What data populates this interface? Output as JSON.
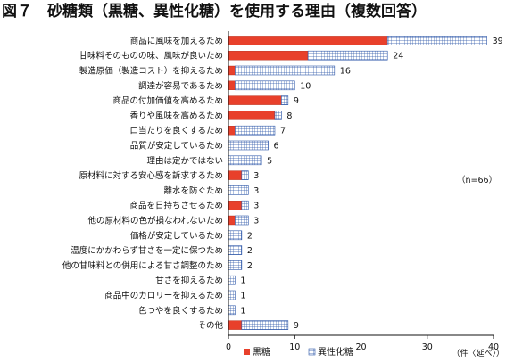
{
  "title": "図７　砂糖類（黒糖、異性化糖）を使用する理由（複数回答）",
  "note": "（n=66）",
  "unit": "（件〈延べ〉）",
  "colors": {
    "kokuto": "#e8402b",
    "iseika_fill": "#ffffff",
    "iseika_grid": "#2b55a8",
    "axis": "#111111"
  },
  "chart_data": {
    "type": "bar",
    "orientation": "horizontal",
    "stacked": true,
    "categories": [
      "商品に風味を加えるため",
      "甘味料そのものの味、風味が良いため",
      "製造原価（製造コスト）を抑えるため",
      "調達が容易であるため",
      "商品の付加価値を高めるため",
      "香りや風味を高めるため",
      "口当たりを良くするため",
      "品質が安定しているため",
      "理由は定かではない",
      "原材料に対する安心感を訴求するため",
      "離水を防ぐため",
      "商品を日持ちさせるため",
      "他の原材料の色が損なわれないため",
      "価格が安定しているため",
      "温度にかかわらず甘さを一定に保つため",
      "他の甘味料との併用による甘さ調整のため",
      "甘さを抑えるため",
      "商品中のカロリーを抑えるため",
      "色つやを良くするため",
      "その他"
    ],
    "series": [
      {
        "name": "黒糖",
        "values": [
          24,
          12,
          1,
          1,
          8,
          7,
          1,
          0,
          0,
          2,
          0,
          2,
          1,
          0,
          0,
          0,
          0,
          0,
          0,
          2
        ]
      },
      {
        "name": "異性化糖",
        "values": [
          15,
          12,
          15,
          9,
          1,
          1,
          6,
          6,
          5,
          1,
          3,
          1,
          2,
          2,
          2,
          2,
          1,
          1,
          1,
          7
        ]
      }
    ],
    "totals": [
      39,
      24,
      16,
      10,
      9,
      8,
      7,
      6,
      5,
      3,
      3,
      3,
      3,
      2,
      2,
      2,
      1,
      1,
      1,
      9
    ],
    "x_ticks": [
      0,
      10,
      20,
      30,
      40
    ],
    "xlim": [
      0,
      40
    ],
    "legend_position": "bottom",
    "grid": false
  }
}
